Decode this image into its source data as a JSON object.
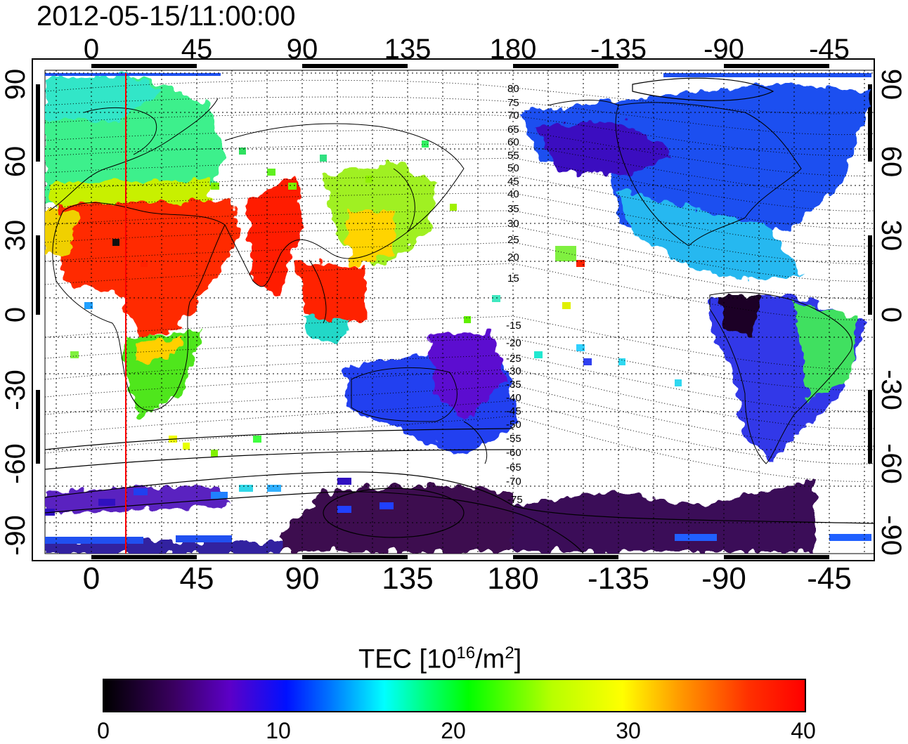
{
  "timestamp": "2012-05-15/11:00:00",
  "axes": {
    "top_ticks": [
      "0",
      "45",
      "90",
      "135",
      "180",
      "-135",
      "-90",
      "-45"
    ],
    "bottom_ticks": [
      "0",
      "45",
      "90",
      "135",
      "180",
      "-135",
      "-90",
      "-45"
    ],
    "left_ticks": [
      "90",
      "60",
      "30",
      "0",
      "-30",
      "-60",
      "-90"
    ],
    "right_ticks": [
      "90",
      "60",
      "30",
      "0",
      "-30",
      "-60",
      "-90"
    ]
  },
  "contour_labels": [
    "80",
    "75",
    "70",
    "65",
    "60",
    "55",
    "50",
    "45",
    "40",
    "35",
    "30",
    "25",
    "20",
    "15",
    "-15",
    "-20",
    "-25",
    "-30",
    "-35",
    "-40",
    "-45",
    "-50",
    "-55",
    "-60",
    "-65",
    "-70",
    "-75"
  ],
  "colorbar": {
    "title_text": "TEC  [10",
    "title_exp": "16",
    "title_mid": "/m",
    "title_exp2": "2",
    "title_end": "]",
    "min": 0,
    "max": 40,
    "ticks": [
      "0",
      "10",
      "20",
      "30",
      "40"
    ]
  },
  "colors": {
    "marker_line": "#ff0000",
    "grid": "#000000",
    "background": "#ffffff"
  }
}
